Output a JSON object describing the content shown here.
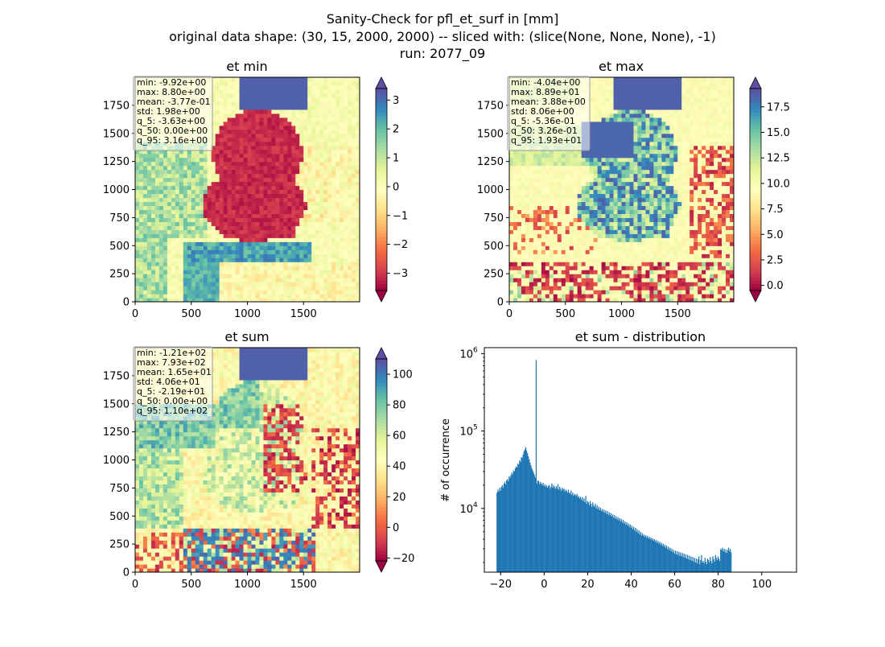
{
  "figure": {
    "title_lines": [
      "Sanity-Check for pfl_et_surf in [mm]",
      "original data shape: (30, 15, 2000, 2000) -- sliced with: (slice(None, None, None), -1)",
      "run: 2077_09"
    ]
  },
  "colors": {
    "spectral": [
      "#9e0142",
      "#d53e4f",
      "#f46d43",
      "#fdae61",
      "#fee08b",
      "#ffffbf",
      "#e6f598",
      "#abdda4",
      "#66c2a5",
      "#3288bd",
      "#5e4fa2"
    ],
    "hist_bar": "#1f77b4"
  },
  "chart_data": [
    {
      "type": "heatmap",
      "id": "etmin",
      "title": "et min",
      "x_ticks": [
        "0",
        "500",
        "1000",
        "1500"
      ],
      "y_ticks": [
        "0",
        "250",
        "500",
        "750",
        "1000",
        "1250",
        "1500",
        "1750"
      ],
      "xlim": [
        0,
        2000
      ],
      "ylim": [
        0,
        2000
      ],
      "colorbar": {
        "vmin": -3.6,
        "vmax": 3.4,
        "ticks": [
          3,
          2,
          1,
          0,
          -1,
          -2,
          -3
        ],
        "tick_labels": [
          "3",
          "2",
          "1",
          "0",
          "−1",
          "−2",
          "−3"
        ],
        "extend": "both"
      },
      "stats": [
        "min: -9.92e+00",
        "max: 8.80e+00",
        "mean: -3.77e-01",
        "std: 1.98e+00",
        "q_5: -3.63e+00",
        "q_50: 0.00e+00",
        "q_95: 3.16e+00"
      ]
    },
    {
      "type": "heatmap",
      "id": "etmax",
      "title": "et max",
      "x_ticks": [
        "0",
        "500",
        "1000",
        "1500"
      ],
      "y_ticks": [
        "0",
        "250",
        "500",
        "750",
        "1000",
        "1250",
        "1500",
        "1750"
      ],
      "xlim": [
        0,
        2000
      ],
      "ylim": [
        0,
        2000
      ],
      "colorbar": {
        "vmin": -0.5,
        "vmax": 19.3,
        "ticks": [
          17.5,
          15,
          12.5,
          10,
          7.5,
          5,
          2.5,
          0
        ],
        "tick_labels": [
          "17.5",
          "15.0",
          "12.5",
          "10.0",
          "7.5",
          "5.0",
          "2.5",
          "0.0"
        ],
        "extend": "both"
      },
      "stats": [
        "min: -4.04e+00",
        "max: 8.89e+01",
        "mean: 3.88e+00",
        "std: 8.06e+00",
        "q_5: -5.36e-01",
        "q_50: 3.26e-01",
        "q_95: 1.93e+01"
      ]
    },
    {
      "type": "heatmap",
      "id": "etsum",
      "title": "et sum",
      "x_ticks": [
        "0",
        "500",
        "1000",
        "1500"
      ],
      "y_ticks": [
        "0",
        "250",
        "500",
        "750",
        "1000",
        "1250",
        "1500",
        "1750"
      ],
      "xlim": [
        0,
        2000
      ],
      "ylim": [
        0,
        2000
      ],
      "colorbar": {
        "vmin": -21.9,
        "vmax": 110,
        "ticks": [
          100,
          80,
          60,
          40,
          20,
          0,
          -20
        ],
        "tick_labels": [
          "100",
          "80",
          "60",
          "40",
          "20",
          "0",
          "−20"
        ],
        "extend": "both"
      },
      "stats": [
        "min: -1.21e+02",
        "max: 7.93e+02",
        "mean: 1.65e+01",
        "std: 4.06e+01",
        "q_5: -2.19e+01",
        "q_50: 0.00e+00",
        "q_95: 1.10e+02"
      ]
    },
    {
      "type": "bar",
      "id": "hist",
      "title": "et sum - distribution",
      "ylabel": "# of occurrence",
      "xlabel": "",
      "yscale": "log",
      "xlim": [
        -27.5,
        116.0
      ],
      "ylim": [
        1500,
        1200000
      ],
      "x_ticks": [
        -20,
        0,
        20,
        40,
        60,
        80,
        100
      ],
      "x_tick_labels": [
        "−20",
        "0",
        "20",
        "40",
        "60",
        "80",
        "100"
      ],
      "y_ticks": [
        10000,
        100000,
        1000000
      ],
      "y_tick_labels": [
        "10",
        "10",
        "10"
      ],
      "y_tick_exps": [
        "4",
        "5",
        "6"
      ],
      "bin_start": -21.9,
      "bin_width": 0.4,
      "values": [
        16000,
        17500,
        16500,
        18500,
        17000,
        19000,
        20000,
        18500,
        21000,
        22000,
        20500,
        23000,
        24000,
        22500,
        26000,
        25000,
        27000,
        29000,
        27500,
        31000,
        30000,
        33000,
        35000,
        34000,
        38000,
        37000,
        42000,
        40000,
        46000,
        45000,
        50000,
        55000,
        58000,
        62000,
        56000,
        52000,
        47000,
        43000,
        39000,
        36000,
        33000,
        31000,
        29000,
        27000,
        25000,
        830000,
        21000,
        23000,
        22500,
        20500,
        22000,
        21000,
        20000,
        21500,
        19500,
        20500,
        19000,
        20000,
        18500,
        19500,
        20000,
        18000,
        19000,
        21000,
        18500,
        20000,
        19000,
        18000,
        19500,
        18000,
        20500,
        17500,
        19000,
        18000,
        17000,
        18500,
        17500,
        18000,
        16500,
        17500,
        17000,
        16000,
        17500,
        16000,
        15500,
        17000,
        15000,
        16000,
        14500,
        15500,
        15000,
        14500,
        15500,
        14000,
        14500,
        13500,
        14000,
        13000,
        14000,
        12500,
        13500,
        12000,
        14500,
        11500,
        12500,
        12000,
        11000,
        12500,
        11500,
        10500,
        12000,
        11000,
        10500,
        11500,
        10000,
        11000,
        9800,
        10500,
        9500,
        10200,
        9300,
        9800,
        9000,
        9600,
        8800,
        9400,
        8500,
        9200,
        8300,
        8900,
        8100,
        8700,
        7900,
        8400,
        7600,
        8200,
        7400,
        7900,
        7200,
        7700,
        7000,
        7500,
        6800,
        7300,
        6600,
        7100,
        6400,
        6800,
        6200,
        6600,
        6000,
        6400,
        5800,
        6200,
        5600,
        6000,
        5400,
        5800,
        5200,
        5600,
        5000,
        5400,
        4800,
        5200,
        4600,
        5000,
        4500,
        4800,
        4400,
        4600,
        4300,
        4500,
        4200,
        4400,
        4100,
        4300,
        4000,
        4200,
        3900,
        4100,
        3800,
        4000,
        3700,
        3900,
        3600,
        3800,
        3500,
        3700,
        3400,
        3600,
        3300,
        3500,
        3200,
        3400,
        3100,
        3300,
        3000,
        3200,
        2900,
        3100,
        2800,
        3000,
        2700,
        2900,
        2600,
        2850,
        2550,
        2800,
        2500,
        2750,
        2450,
        2700,
        2400,
        2650,
        2350,
        2600,
        2300,
        2550,
        2250,
        2500,
        2200,
        2450,
        2150,
        2400,
        2100,
        2350,
        2050,
        2300,
        2000,
        2250,
        1950,
        2200,
        2400,
        1900,
        2150,
        2500,
        2000,
        2100,
        1950,
        2300,
        2050,
        1900,
        2250,
        2150,
        2000,
        2350,
        2100,
        1950,
        2400,
        2200,
        2050,
        2500,
        2300,
        2150,
        2400,
        2250,
        2100,
        3000,
        2900,
        3100,
        2800,
        3000,
        2700,
        2950,
        2650,
        2900,
        3100,
        2800,
        3000,
        2700
      ]
    }
  ]
}
